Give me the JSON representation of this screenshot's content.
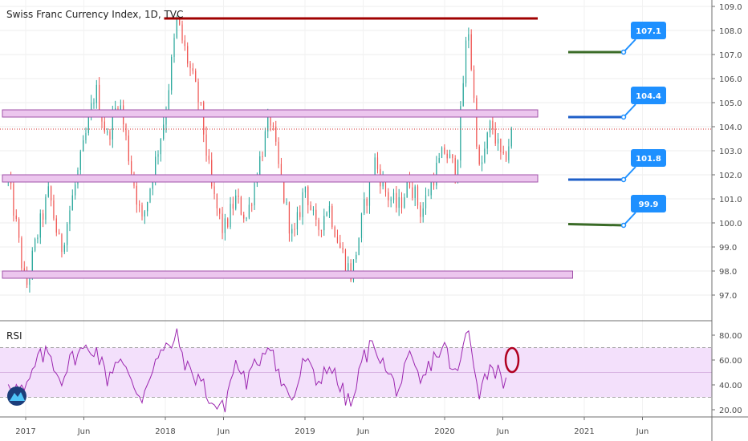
{
  "header": {
    "title": "Swiss Franc Currency Index, 1D, TVC"
  },
  "rsi_panel": {
    "label": "RSI"
  },
  "colors": {
    "bull": "#26a69a",
    "bear": "#ef5350",
    "rsi_line": "#9c27b0",
    "rsi_band": "#f3e0fb",
    "zone_fill": "#ecc6ee",
    "zone_stroke": "#a052a8",
    "resistance": "#a00000",
    "target_green": "#3a6b27",
    "target_blue": "#1e5fc8",
    "callout": "#1e90ff",
    "circle": "#b00020"
  },
  "chart_data": [
    {
      "type": "candlestick",
      "title": "Swiss Franc Currency Index, 1D, TVC",
      "ylim": [
        96.4,
        109.2
      ],
      "y_ticks": [
        "109.0",
        "108.0",
        "107.0",
        "106.0",
        "105.0",
        "104.0",
        "103.0",
        "102.0",
        "101.0",
        "100.0",
        "99.0",
        "98.0",
        "97.0"
      ],
      "x_ticks": [
        "2017",
        "Jun",
        "2018",
        "Jun",
        "2019",
        "Jun",
        "2020",
        "Jun",
        "2021",
        "Jun"
      ],
      "price_path": [
        {
          "t": "2016-11",
          "v": 103.0
        },
        {
          "t": "2016-12",
          "v": 100.5
        },
        {
          "t": "2017-01",
          "v": 97.2
        },
        {
          "t": "2017-02",
          "v": 99.5
        },
        {
          "t": "2017-03",
          "v": 101.3
        },
        {
          "t": "2017-04",
          "v": 98.8
        },
        {
          "t": "2017-05",
          "v": 101.0
        },
        {
          "t": "2017-06",
          "v": 103.2
        },
        {
          "t": "2017-07",
          "v": 105.6
        },
        {
          "t": "2017-08",
          "v": 103.5
        },
        {
          "t": "2017-09",
          "v": 105.2
        },
        {
          "t": "2017-10",
          "v": 102.4
        },
        {
          "t": "2017-11",
          "v": 100.0
        },
        {
          "t": "2017-12",
          "v": 102.2
        },
        {
          "t": "2018-01",
          "v": 104.6
        },
        {
          "t": "2018-02",
          "v": 108.4
        },
        {
          "t": "2018-03",
          "v": 106.6
        },
        {
          "t": "2018-04",
          "v": 104.8
        },
        {
          "t": "2018-05",
          "v": 101.3
        },
        {
          "t": "2018-06",
          "v": 99.6
        },
        {
          "t": "2018-07",
          "v": 101.0
        },
        {
          "t": "2018-08",
          "v": 100.2
        },
        {
          "t": "2018-09",
          "v": 102.4
        },
        {
          "t": "2018-10",
          "v": 104.4
        },
        {
          "t": "2018-11",
          "v": 101.5
        },
        {
          "t": "2018-12",
          "v": 99.2
        },
        {
          "t": "2019-01",
          "v": 101.6
        },
        {
          "t": "2019-02",
          "v": 99.6
        },
        {
          "t": "2019-03",
          "v": 100.8
        },
        {
          "t": "2019-04",
          "v": 99.0
        },
        {
          "t": "2019-05",
          "v": 97.8
        },
        {
          "t": "2019-06",
          "v": 100.4
        },
        {
          "t": "2019-07",
          "v": 102.6
        },
        {
          "t": "2019-08",
          "v": 101.2
        },
        {
          "t": "2019-09",
          "v": 100.6
        },
        {
          "t": "2019-10",
          "v": 101.8
        },
        {
          "t": "2019-11",
          "v": 100.4
        },
        {
          "t": "2019-12",
          "v": 101.9
        },
        {
          "t": "2020-01",
          "v": 103.0
        },
        {
          "t": "2020-02",
          "v": 102.1
        },
        {
          "t": "2020-03",
          "v": 108.4
        },
        {
          "t": "2020-04",
          "v": 102.0
        },
        {
          "t": "2020-05",
          "v": 104.2
        },
        {
          "t": "2020-06",
          "v": 102.4
        },
        {
          "t": "2020-07",
          "v": 104.2
        }
      ],
      "last_price": 103.9,
      "resistance": {
        "value": 108.5,
        "from": "2018-02",
        "to": "2020-09"
      },
      "zones": [
        {
          "low": 104.4,
          "high": 104.7,
          "from": "2016-11",
          "to": "2020-09"
        },
        {
          "low": 101.7,
          "high": 102.0,
          "from": "2016-11",
          "to": "2020-09"
        },
        {
          "low": 97.7,
          "high": 98.0,
          "from": "2016-11",
          "to": "2020-12"
        }
      ],
      "targets": [
        {
          "value": 107.1,
          "label": "107.1",
          "color": "target_green",
          "v_from": 107.1,
          "v_to": 107.1
        },
        {
          "value": 104.4,
          "label": "104.4",
          "color": "target_blue",
          "v_from": 104.4,
          "v_to": 104.4
        },
        {
          "value": 101.8,
          "label": "101.8",
          "color": "target_blue",
          "v_from": 101.8,
          "v_to": 101.8
        },
        {
          "value": 99.9,
          "label": "99.9",
          "color": "target_green",
          "v_from": 99.95,
          "v_to": 99.9
        }
      ]
    },
    {
      "type": "line",
      "name": "RSI",
      "ylim": [
        17,
        88
      ],
      "y_ticks": [
        "80.00",
        "60.00",
        "40.00",
        "20.00"
      ],
      "bands": [
        30,
        70
      ],
      "mid": 50,
      "path": [
        {
          "t": "2016-11",
          "v": 50
        },
        {
          "t": "2016-12",
          "v": 38
        },
        {
          "t": "2017-01",
          "v": 34
        },
        {
          "t": "2017-02",
          "v": 60
        },
        {
          "t": "2017-03",
          "v": 66
        },
        {
          "t": "2017-04",
          "v": 44
        },
        {
          "t": "2017-05",
          "v": 62
        },
        {
          "t": "2017-06",
          "v": 68
        },
        {
          "t": "2017-07",
          "v": 70
        },
        {
          "t": "2017-08",
          "v": 45
        },
        {
          "t": "2017-09",
          "v": 64
        },
        {
          "t": "2017-10",
          "v": 42
        },
        {
          "t": "2017-11",
          "v": 30
        },
        {
          "t": "2017-12",
          "v": 58
        },
        {
          "t": "2018-01",
          "v": 68
        },
        {
          "t": "2018-02",
          "v": 78
        },
        {
          "t": "2018-03",
          "v": 50
        },
        {
          "t": "2018-04",
          "v": 45
        },
        {
          "t": "2018-05",
          "v": 25
        },
        {
          "t": "2018-06",
          "v": 20
        },
        {
          "t": "2018-07",
          "v": 58
        },
        {
          "t": "2018-08",
          "v": 42
        },
        {
          "t": "2018-09",
          "v": 60
        },
        {
          "t": "2018-10",
          "v": 76
        },
        {
          "t": "2018-11",
          "v": 40
        },
        {
          "t": "2018-12",
          "v": 28
        },
        {
          "t": "2019-01",
          "v": 62
        },
        {
          "t": "2019-02",
          "v": 40
        },
        {
          "t": "2019-03",
          "v": 58
        },
        {
          "t": "2019-04",
          "v": 38
        },
        {
          "t": "2019-05",
          "v": 22
        },
        {
          "t": "2019-06",
          "v": 62
        },
        {
          "t": "2019-07",
          "v": 74
        },
        {
          "t": "2019-08",
          "v": 50
        },
        {
          "t": "2019-09",
          "v": 36
        },
        {
          "t": "2019-10",
          "v": 60
        },
        {
          "t": "2019-11",
          "v": 40
        },
        {
          "t": "2019-12",
          "v": 62
        },
        {
          "t": "2020-01",
          "v": 70
        },
        {
          "t": "2020-02",
          "v": 45
        },
        {
          "t": "2020-03",
          "v": 85
        },
        {
          "t": "2020-04",
          "v": 35
        },
        {
          "t": "2020-05",
          "v": 58
        },
        {
          "t": "2020-06",
          "v": 44
        },
        {
          "t": "2020-07",
          "v": 60
        }
      ],
      "highlight": {
        "t": "2020-07",
        "v": 60
      }
    }
  ]
}
